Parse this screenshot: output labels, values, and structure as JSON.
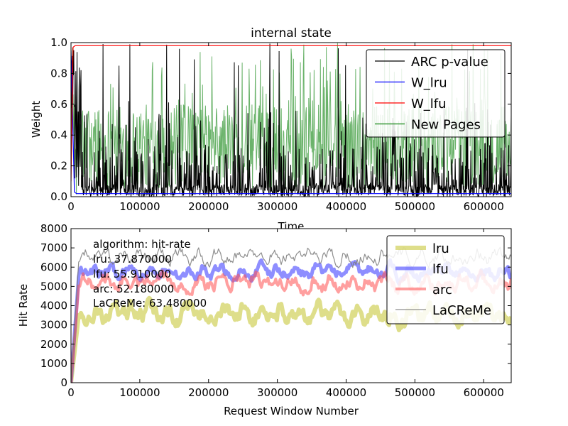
{
  "chart_data": [
    {
      "type": "line",
      "title": "internal state",
      "xlabel": "Time",
      "ylabel": "Weight",
      "xlim": [
        0,
        640000
      ],
      "ylim": [
        0.0,
        1.0
      ],
      "x_ticks": [
        "0",
        "100000",
        "200000",
        "300000",
        "400000",
        "500000",
        "600000"
      ],
      "y_ticks": [
        "0.0",
        "0.2",
        "0.4",
        "0.6",
        "0.8",
        "1.0"
      ],
      "legend_position": "top-right",
      "series": [
        {
          "name": "ARC p-value",
          "color": "#000000",
          "description_values": {
            "range": [
              0.0,
              1.0
            ],
            "typical": [
              0.0,
              0.5
            ]
          }
        },
        {
          "name": "W_lru",
          "color": "#0000ff",
          "values_x": [
            0,
            5000,
            8000,
            640000
          ],
          "values_y": [
            0.95,
            0.03,
            0.02,
            0.02
          ]
        },
        {
          "name": "W_lfu",
          "color": "#ff0000",
          "values_x": [
            0,
            3000,
            6000,
            640000
          ],
          "values_y": [
            0.1,
            0.97,
            0.98,
            0.98
          ]
        },
        {
          "name": "New Pages",
          "color": "#3a9a3a",
          "description_values": {
            "range": [
              0.0,
              1.0
            ],
            "typical": [
              0.05,
              0.65
            ]
          }
        }
      ]
    },
    {
      "type": "line",
      "title": "",
      "xlabel": "Request Window Number",
      "ylabel": "Hit Rate",
      "xlim": [
        0,
        640000
      ],
      "ylim": [
        0,
        8000
      ],
      "x_ticks": [
        "0",
        "100000",
        "200000",
        "300000",
        "400000",
        "500000",
        "600000"
      ],
      "y_ticks": [
        "0",
        "1000",
        "2000",
        "3000",
        "4000",
        "5000",
        "6000",
        "7000",
        "8000"
      ],
      "legend_position": "top-right",
      "annotation": {
        "header": "algorithm:  hit-rate",
        "rows": [
          "lru:  37.870000",
          "lfu:  55.910000",
          "arc:  52.180000",
          "LaCReMe:  63.480000"
        ]
      },
      "series": [
        {
          "name": "lru",
          "color": "#c8c83c",
          "mean": 3550,
          "spread": 700
        },
        {
          "name": "lfu",
          "color": "#3232ff",
          "mean": 5750,
          "spread": 500
        },
        {
          "name": "arc",
          "color": "#ff5050",
          "mean": 5200,
          "spread": 600
        },
        {
          "name": "LaCReMe",
          "color": "#7a7a7a",
          "mean": 6550,
          "spread": 550
        }
      ]
    }
  ]
}
